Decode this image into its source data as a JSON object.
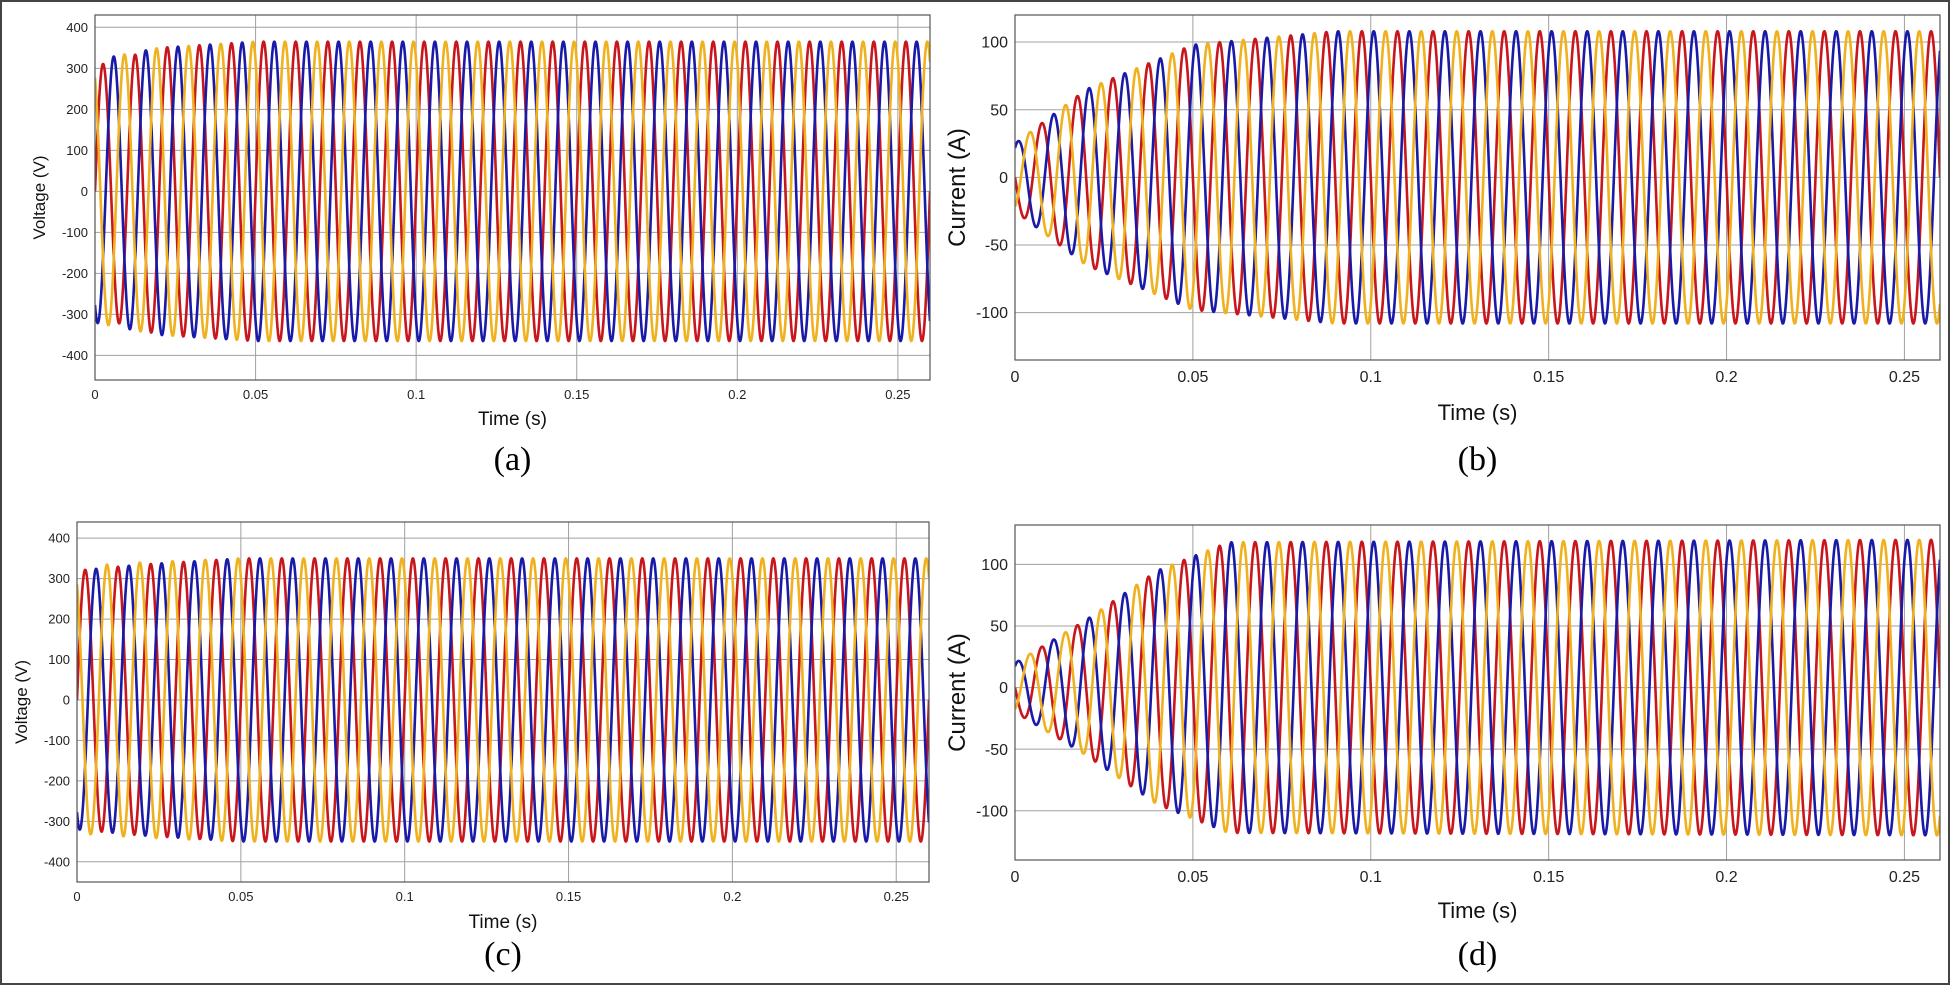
{
  "colors": {
    "phase_a": "#c8161d",
    "phase_b": "#1a1aa8",
    "phase_c": "#f0b11e",
    "grid": "#a0a0a0",
    "axes": "#555555"
  },
  "chart_data": [
    {
      "type": "line",
      "caption": "(a)",
      "xlabel": "Time (s)",
      "ylabel": "Voltage (V)",
      "xlim": [
        0,
        0.26
      ],
      "ylim": [
        -460,
        430
      ],
      "xticks": [
        0,
        0.05,
        0.1,
        0.15,
        0.2,
        0.25
      ],
      "xtick_labels": [
        "0",
        "0.05",
        "0.1",
        "0.15",
        "0.2",
        "0.25"
      ],
      "yticks": [
        400,
        300,
        200,
        100,
        0,
        -100,
        -200,
        -300,
        -400
      ],
      "ytick_labels": [
        "400",
        "300",
        "200",
        "100",
        "0",
        "-100",
        "-200",
        "-300",
        "-400"
      ],
      "grid": true,
      "frequency_hz": 100,
      "series": [
        {
          "color": "#c8161d",
          "phase_deg": 0,
          "amplitude": {
            "t": [
              0,
              0.02,
              0.05,
              0.26
            ],
            "v": [
              305,
              350,
              365,
              365
            ]
          }
        },
        {
          "color": "#1a1aa8",
          "phase_deg": -120,
          "amplitude": {
            "t": [
              0,
              0.02,
              0.05,
              0.26
            ],
            "v": [
              320,
              350,
              365,
              365
            ]
          }
        },
        {
          "color": "#f0b11e",
          "phase_deg": 120,
          "amplitude": {
            "t": [
              0,
              0.02,
              0.05,
              0.26
            ],
            "v": [
              320,
              350,
              365,
              365
            ]
          }
        }
      ]
    },
    {
      "type": "line",
      "caption": "(b)",
      "xlabel": "Time (s)",
      "ylabel": "Current (A)",
      "xlim": [
        0,
        0.26
      ],
      "ylim": [
        -135,
        120
      ],
      "xticks": [
        0,
        0.05,
        0.1,
        0.15,
        0.2,
        0.25
      ],
      "xtick_labels": [
        "0",
        "0.05",
        "0.1",
        "0.15",
        "0.2",
        "0.25"
      ],
      "yticks": [
        100,
        50,
        0,
        -50,
        -100
      ],
      "ytick_labels": [
        "100",
        "50",
        "0",
        "-50",
        "-100"
      ],
      "grid": true,
      "frequency_hz": 100,
      "series": [
        {
          "color": "#c8161d",
          "phase_deg": 180,
          "amplitude": {
            "t": [
              0,
              0.02,
              0.05,
              0.09,
              0.26
            ],
            "v": [
              25,
              65,
              98,
              108,
              108
            ]
          }
        },
        {
          "color": "#1a1aa8",
          "phase_deg": 60,
          "amplitude": {
            "t": [
              0,
              0.02,
              0.05,
              0.09,
              0.26
            ],
            "v": [
              25,
              65,
              98,
              108,
              108
            ]
          }
        },
        {
          "color": "#f0b11e",
          "phase_deg": -60,
          "amplitude": {
            "t": [
              0,
              0.02,
              0.05,
              0.09,
              0.26
            ],
            "v": [
              25,
              65,
              98,
              108,
              108
            ]
          }
        }
      ]
    },
    {
      "type": "line",
      "caption": "(c)",
      "xlabel": "Time (s)",
      "ylabel": "Voltage (V)",
      "xlim": [
        0,
        0.26
      ],
      "ylim": [
        -450,
        440
      ],
      "xticks": [
        0,
        0.05,
        0.1,
        0.15,
        0.2,
        0.25
      ],
      "xtick_labels": [
        "0",
        "0.05",
        "0.1",
        "0.15",
        "0.2",
        "0.25"
      ],
      "yticks": [
        400,
        300,
        200,
        100,
        0,
        -100,
        -200,
        -300,
        -400
      ],
      "ytick_labels": [
        "400",
        "300",
        "200",
        "100",
        "0",
        "-100",
        "-200",
        "-300",
        "-400"
      ],
      "grid": true,
      "frequency_hz": 100,
      "series": [
        {
          "color": "#c8161d",
          "phase_deg": 0,
          "amplitude": {
            "t": [
              0,
              0.02,
              0.05,
              0.26
            ],
            "v": [
              320,
              335,
              350,
              350
            ]
          }
        },
        {
          "color": "#1a1aa8",
          "phase_deg": -120,
          "amplitude": {
            "t": [
              0,
              0.02,
              0.05,
              0.26
            ],
            "v": [
              320,
              335,
              350,
              350
            ]
          }
        },
        {
          "color": "#f0b11e",
          "phase_deg": 120,
          "amplitude": {
            "t": [
              0,
              0.02,
              0.05,
              0.26
            ],
            "v": [
              330,
              340,
              350,
              350
            ]
          }
        }
      ]
    },
    {
      "type": "line",
      "caption": "(d)",
      "xlabel": "Time (s)",
      "ylabel": "Current (A)",
      "xlim": [
        0,
        0.26
      ],
      "ylim": [
        -140,
        132
      ],
      "xticks": [
        0,
        0.05,
        0.1,
        0.15,
        0.2,
        0.25
      ],
      "xtick_labels": [
        "0",
        "0.05",
        "0.1",
        "0.15",
        "0.2",
        "0.25"
      ],
      "yticks": [
        100,
        50,
        0,
        -50,
        -100
      ],
      "ytick_labels": [
        "100",
        "50",
        "0",
        "-50",
        "-100"
      ],
      "grid": true,
      "frequency_hz": 100,
      "series": [
        {
          "color": "#c8161d",
          "phase_deg": 180,
          "amplitude": {
            "t": [
              0,
              0.02,
              0.04,
              0.06,
              0.26
            ],
            "v": [
              20,
              55,
              95,
              118,
              120
            ]
          }
        },
        {
          "color": "#1a1aa8",
          "phase_deg": 60,
          "amplitude": {
            "t": [
              0,
              0.02,
              0.04,
              0.06,
              0.26
            ],
            "v": [
              20,
              55,
              95,
              118,
              120
            ]
          }
        },
        {
          "color": "#f0b11e",
          "phase_deg": -60,
          "amplitude": {
            "t": [
              0,
              0.02,
              0.04,
              0.06,
              0.26
            ],
            "v": [
              20,
              55,
              95,
              118,
              120
            ]
          }
        }
      ]
    }
  ]
}
